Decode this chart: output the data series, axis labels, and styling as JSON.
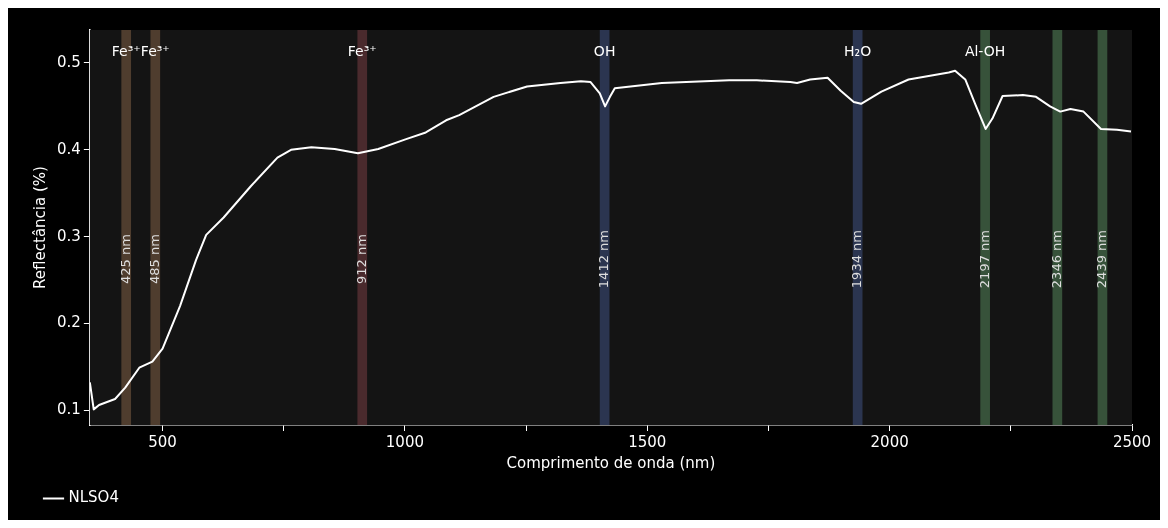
{
  "chart_data": {
    "type": "line",
    "xlabel": "Comprimento de onda (nm)",
    "ylabel": "Reflectância (%)",
    "xlim": [
      350,
      2500
    ],
    "ylim": [
      0.083,
      0.538
    ],
    "xticks": [
      500,
      {
        "value": 750,
        "label": null
      },
      1000,
      {
        "value": 1250,
        "label": null
      },
      1500,
      {
        "value": 1750,
        "label": null
      },
      2000,
      {
        "value": 2250,
        "label": null
      },
      2500
    ],
    "yticks": [
      0.1,
      0.2,
      0.3,
      0.4,
      0.5
    ],
    "grid": false,
    "legend": "bottom left",
    "marker": "none",
    "line_style": "solid",
    "series": [
      {
        "name": "NLSO4",
        "color": "#ffffff",
        "x": [
          350,
          358,
          369,
          402,
          423,
          452,
          479,
          500,
          536,
          569,
          590,
          626,
          682,
          737,
          765,
          807,
          855,
          903,
          945,
          1001,
          1043,
          1085,
          1112,
          1183,
          1252,
          1321,
          1363,
          1383,
          1402,
          1413,
          1423,
          1433,
          1530,
          1669,
          1726,
          1795,
          1809,
          1836,
          1872,
          1899,
          1926,
          1941,
          1983,
          2039,
          2122,
          2135,
          2156,
          2177,
          2198,
          2212,
          2233,
          2275,
          2302,
          2331,
          2352,
          2373,
          2400,
          2436,
          2469,
          2498
        ],
        "values": [
          0.132,
          0.101,
          0.106,
          0.113,
          0.126,
          0.149,
          0.156,
          0.171,
          0.22,
          0.273,
          0.302,
          0.322,
          0.358,
          0.391,
          0.4,
          0.403,
          0.401,
          0.396,
          0.401,
          0.412,
          0.42,
          0.434,
          0.44,
          0.461,
          0.473,
          0.477,
          0.479,
          0.478,
          0.465,
          0.45,
          0.461,
          0.471,
          0.477,
          0.48,
          0.48,
          0.478,
          0.477,
          0.481,
          0.483,
          0.468,
          0.455,
          0.453,
          0.467,
          0.481,
          0.489,
          0.491,
          0.481,
          0.452,
          0.424,
          0.436,
          0.462,
          0.463,
          0.461,
          0.45,
          0.444,
          0.447,
          0.444,
          0.424,
          0.423,
          0.421
        ]
      }
    ],
    "bands": [
      {
        "axis": "x",
        "from": 415,
        "to": 435,
        "label": "425 nm",
        "color": "#4f3d2e"
      },
      {
        "axis": "x",
        "from": 475,
        "to": 495,
        "label": "485 nm",
        "color": "#4f3d2e"
      },
      {
        "axis": "x",
        "from": 902,
        "to": 922,
        "label": "912 nm",
        "color": "#4a2a2d"
      },
      {
        "axis": "x",
        "from": 1402,
        "to": 1422,
        "label": "1412 nm",
        "color": "#2b3550"
      },
      {
        "axis": "x",
        "from": 1924,
        "to": 1944,
        "label": "1934 nm",
        "color": "#2b3550"
      },
      {
        "axis": "x",
        "from": 2187,
        "to": 2207,
        "label": "2197 nm",
        "color": "#37523a"
      },
      {
        "axis": "x",
        "from": 2336,
        "to": 2356,
        "label": "2346 nm",
        "color": "#37523a"
      },
      {
        "axis": "x",
        "from": 2429,
        "to": 2449,
        "label": "2439 nm",
        "color": "#37523a"
      }
    ],
    "annotations": [
      {
        "text": "Fe³⁺",
        "x": 425,
        "y": 0.512
      },
      {
        "text": "Fe³⁺",
        "x": 485,
        "y": 0.512
      },
      {
        "text": "Fe³⁺",
        "x": 912,
        "y": 0.512
      },
      {
        "text": "OH",
        "x": 1412,
        "y": 0.512
      },
      {
        "text": "H₂O",
        "x": 1934,
        "y": 0.512
      },
      {
        "text": "Al-OH",
        "x": 2197,
        "y": 0.512
      }
    ]
  }
}
